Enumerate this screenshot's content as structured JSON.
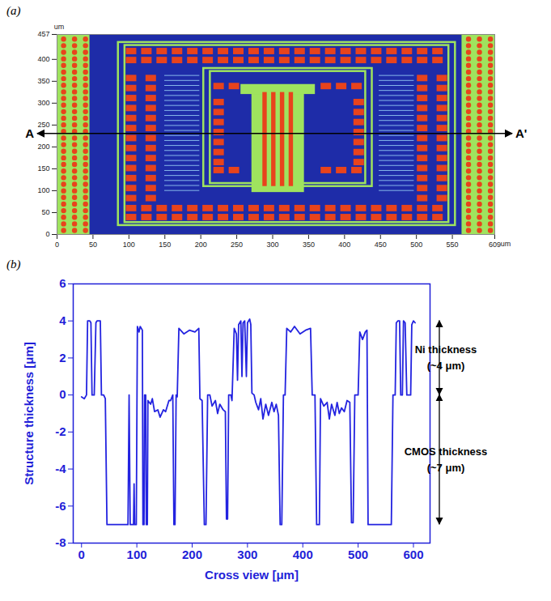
{
  "chart_data": [
    {
      "type": "image",
      "panel": "(a)",
      "unit": "um",
      "xlim": [
        0,
        609
      ],
      "ylim": [
        0,
        457
      ],
      "xticks": [
        0,
        50,
        100,
        150,
        200,
        250,
        300,
        350,
        400,
        450,
        500,
        550,
        609
      ],
      "yticks": [
        0,
        50,
        100,
        150,
        200,
        250,
        300,
        350,
        400,
        457
      ],
      "tick_labels": true,
      "section": {
        "label_start": "A",
        "label_end": "A'",
        "y": 230
      }
    },
    {
      "type": "line",
      "panel": "(b)",
      "x_label": "Cross view [μm]",
      "y_label": "Structure thickness [μm]",
      "xlim": [
        -15,
        630
      ],
      "ylim": [
        -8,
        6
      ],
      "xticks": [
        0,
        100,
        200,
        300,
        400,
        500,
        600
      ],
      "yticks": [
        -8,
        -6,
        -4,
        -2,
        0,
        2,
        4,
        6
      ],
      "grid": false,
      "x": [
        0,
        5,
        9,
        11,
        15,
        17,
        19,
        23,
        26,
        28,
        34,
        36,
        40,
        43,
        46,
        60,
        75,
        84,
        86,
        88,
        94,
        95,
        96,
        99,
        101,
        104,
        106,
        110,
        111,
        113,
        114,
        116,
        117,
        119,
        120,
        125,
        128,
        132,
        138,
        142,
        148,
        152,
        158,
        161,
        165,
        167,
        169,
        171,
        173,
        176,
        185,
        195,
        205,
        212,
        214,
        218,
        222,
        225,
        228,
        232,
        236,
        242,
        246,
        250,
        256,
        260,
        262,
        264,
        266,
        270,
        272,
        276,
        280,
        282,
        284,
        288,
        290,
        292,
        295,
        298,
        300,
        304,
        306,
        308,
        312,
        315,
        320,
        324,
        328,
        333,
        338,
        344,
        348,
        352,
        356,
        359,
        362,
        365,
        368,
        371,
        378,
        385,
        395,
        405,
        414,
        417,
        422,
        425,
        430,
        432,
        438,
        444,
        448,
        452,
        458,
        462,
        466,
        470,
        475,
        480,
        485,
        488,
        491,
        494,
        500,
        503,
        508,
        513,
        516,
        518,
        530,
        545,
        560,
        563,
        567,
        569,
        572,
        575,
        577,
        580,
        582,
        585,
        588,
        595,
        597,
        600,
        603
      ],
      "series": [
        {
          "color": "#2323e0",
          "values": [
            -0.1,
            -0.2,
            0,
            4,
            4,
            3.9,
            0,
            0,
            3.9,
            4,
            4,
            0,
            0,
            -0.2,
            -7,
            -7,
            -7,
            -7,
            0,
            -7,
            -7,
            -4.8,
            -7,
            -7,
            3.7,
            3.4,
            3.7,
            3.5,
            -7,
            -7,
            0,
            0,
            -7,
            -7,
            -0.3,
            -0.5,
            -0.2,
            -0.9,
            -0.8,
            -1.2,
            -0.8,
            -0.9,
            -0.3,
            -0.3,
            0,
            -7,
            -7,
            0,
            -0.1,
            3.6,
            3.3,
            3.5,
            3.4,
            3.6,
            -0.2,
            -0.3,
            -7,
            -7,
            0,
            0,
            -0.6,
            -0.3,
            -1,
            -0.5,
            -0.8,
            -0.9,
            -6.7,
            -6.7,
            0,
            0,
            -0.3,
            3.6,
            3.3,
            0.8,
            3.8,
            4,
            1,
            3.9,
            4,
            1,
            3.9,
            4.1,
            3.8,
            0.1,
            0,
            -0.4,
            -0.8,
            -0.2,
            -1.3,
            -0.5,
            -1.1,
            -0.4,
            -0.9,
            -0.5,
            -1.1,
            -7,
            -7,
            0,
            0,
            3.6,
            3.4,
            3.7,
            3.3,
            3.5,
            3.6,
            0,
            0,
            -7,
            -7,
            -0.2,
            -0.6,
            -0.4,
            -1.3,
            -0.5,
            -1.1,
            -0.4,
            -1.0,
            -0.7,
            -0.9,
            -0.3,
            -0.4,
            -6.9,
            -6.9,
            0,
            0,
            3.4,
            3.0,
            3.4,
            3.5,
            -7,
            -7,
            -7,
            -7,
            0,
            0,
            3.9,
            4,
            4,
            0,
            0,
            4,
            3.9,
            0,
            0,
            3.8,
            4,
            3.9
          ]
        }
      ],
      "annotations": [
        {
          "lines": [
            "Ni thickness",
            "(~4 μm)"
          ],
          "from": 0,
          "to": 4
        },
        {
          "lines": [
            "CMOS thickness",
            "(~7 μm)"
          ],
          "from": -7,
          "to": 0
        }
      ]
    }
  ]
}
